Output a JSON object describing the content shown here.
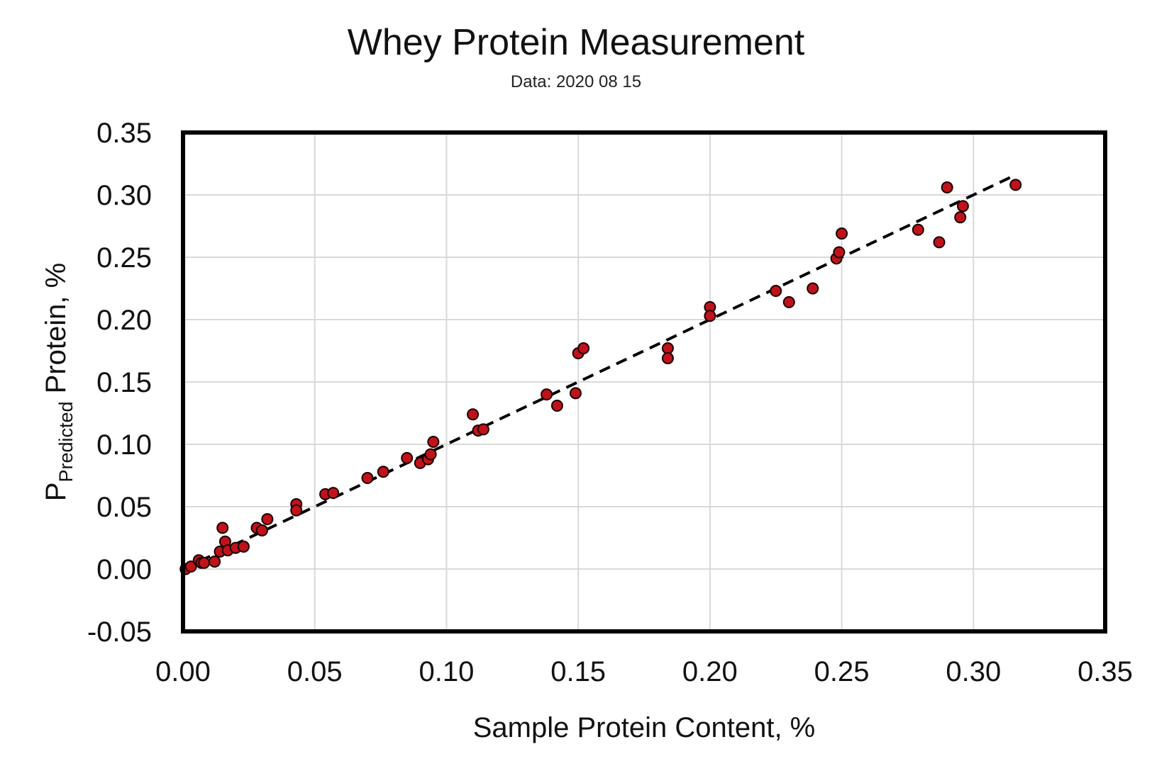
{
  "chart_data": {
    "type": "scatter",
    "title": "Whey Protein Measurement",
    "subtitle": "Data: 2020 08 15",
    "xlabel": "Sample Protein Content, %",
    "ylabel": {
      "main_before": "P",
      "subscript": "Predicted",
      "main_after": " Protein, %"
    },
    "xlim": [
      0.0,
      0.35
    ],
    "ylim": [
      -0.05,
      0.35
    ],
    "x_ticks": [
      "0.00",
      "0.05",
      "0.10",
      "0.15",
      "0.20",
      "0.25",
      "0.30",
      "0.35"
    ],
    "y_ticks": [
      "-0.05",
      "0.00",
      "0.05",
      "0.10",
      "0.15",
      "0.20",
      "0.25",
      "0.30",
      "0.35"
    ],
    "grid": true,
    "marker_color": "#c0121a",
    "marker_edge": "#1a0000",
    "trendline": {
      "style": "dashed",
      "color": "#000000",
      "x": [
        0.0,
        0.315
      ],
      "y": [
        0.0,
        0.315
      ]
    },
    "points": [
      {
        "x": 0.001,
        "y": 0.0
      },
      {
        "x": 0.003,
        "y": 0.002
      },
      {
        "x": 0.006,
        "y": 0.007
      },
      {
        "x": 0.007,
        "y": 0.005
      },
      {
        "x": 0.008,
        "y": 0.005
      },
      {
        "x": 0.012,
        "y": 0.006
      },
      {
        "x": 0.014,
        "y": 0.014
      },
      {
        "x": 0.015,
        "y": 0.033
      },
      {
        "x": 0.016,
        "y": 0.022
      },
      {
        "x": 0.017,
        "y": 0.015
      },
      {
        "x": 0.02,
        "y": 0.017
      },
      {
        "x": 0.023,
        "y": 0.018
      },
      {
        "x": 0.028,
        "y": 0.033
      },
      {
        "x": 0.03,
        "y": 0.031
      },
      {
        "x": 0.032,
        "y": 0.04
      },
      {
        "x": 0.043,
        "y": 0.052
      },
      {
        "x": 0.043,
        "y": 0.047
      },
      {
        "x": 0.054,
        "y": 0.06
      },
      {
        "x": 0.057,
        "y": 0.061
      },
      {
        "x": 0.07,
        "y": 0.073
      },
      {
        "x": 0.076,
        "y": 0.078
      },
      {
        "x": 0.085,
        "y": 0.089
      },
      {
        "x": 0.09,
        "y": 0.085
      },
      {
        "x": 0.093,
        "y": 0.088
      },
      {
        "x": 0.094,
        "y": 0.092
      },
      {
        "x": 0.095,
        "y": 0.102
      },
      {
        "x": 0.11,
        "y": 0.124
      },
      {
        "x": 0.112,
        "y": 0.111
      },
      {
        "x": 0.114,
        "y": 0.112
      },
      {
        "x": 0.138,
        "y": 0.14
      },
      {
        "x": 0.142,
        "y": 0.131
      },
      {
        "x": 0.149,
        "y": 0.141
      },
      {
        "x": 0.15,
        "y": 0.173
      },
      {
        "x": 0.152,
        "y": 0.177
      },
      {
        "x": 0.184,
        "y": 0.177
      },
      {
        "x": 0.184,
        "y": 0.169
      },
      {
        "x": 0.2,
        "y": 0.21
      },
      {
        "x": 0.2,
        "y": 0.203
      },
      {
        "x": 0.225,
        "y": 0.223
      },
      {
        "x": 0.23,
        "y": 0.214
      },
      {
        "x": 0.239,
        "y": 0.225
      },
      {
        "x": 0.248,
        "y": 0.249
      },
      {
        "x": 0.249,
        "y": 0.254
      },
      {
        "x": 0.25,
        "y": 0.269
      },
      {
        "x": 0.279,
        "y": 0.272
      },
      {
        "x": 0.287,
        "y": 0.262
      },
      {
        "x": 0.29,
        "y": 0.306
      },
      {
        "x": 0.295,
        "y": 0.282
      },
      {
        "x": 0.296,
        "y": 0.291
      },
      {
        "x": 0.316,
        "y": 0.308
      }
    ]
  }
}
